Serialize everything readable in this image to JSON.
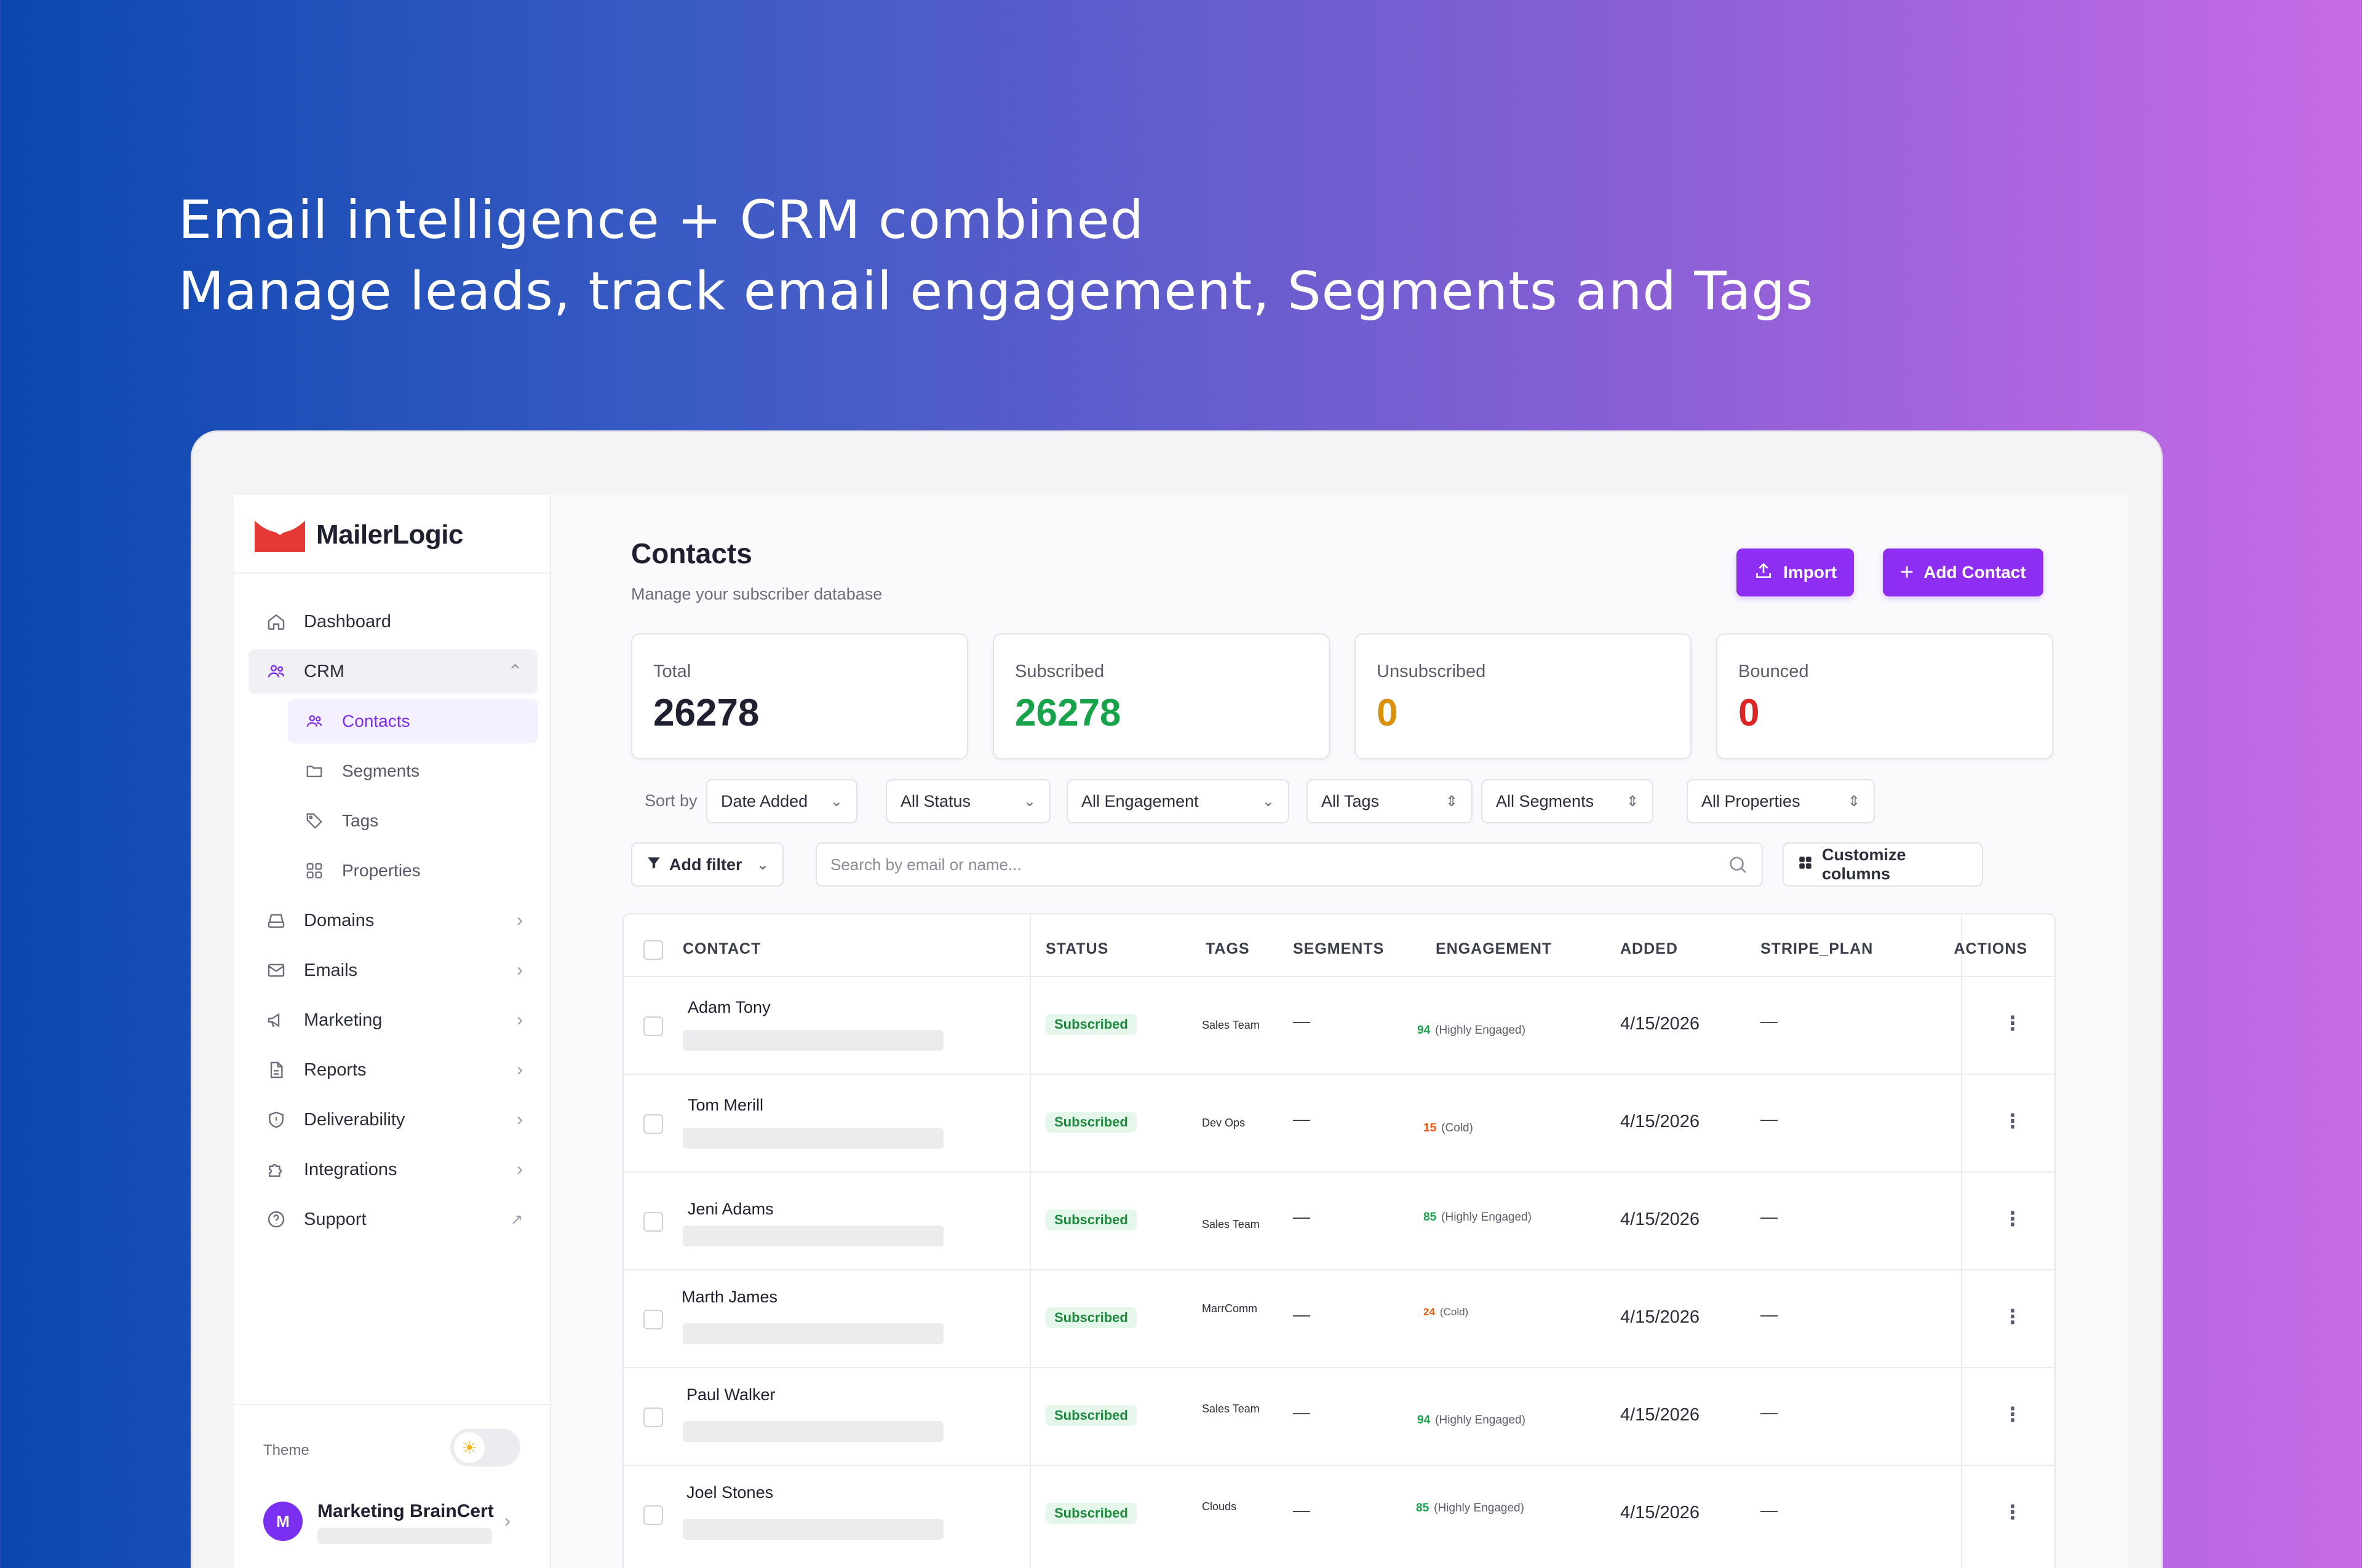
{
  "headline": {
    "line1": "Email intelligence + CRM combined",
    "line2": "Manage leads, track email engagement, Segments and Tags"
  },
  "brand": {
    "name": "MailerLogic",
    "accent": "#8d2ef2",
    "logo_color": "#e53935"
  },
  "sidebar": {
    "items": [
      {
        "label": "Dashboard",
        "icon": "home-icon"
      },
      {
        "label": "CRM",
        "icon": "users-icon"
      },
      {
        "label": "Domains",
        "icon": "server-icon"
      },
      {
        "label": "Emails",
        "icon": "mail-icon"
      },
      {
        "label": "Marketing",
        "icon": "megaphone-icon"
      },
      {
        "label": "Reports",
        "icon": "file-icon"
      },
      {
        "label": "Deliverability",
        "icon": "shield-icon"
      },
      {
        "label": "Integrations",
        "icon": "puzzle-icon"
      },
      {
        "label": "Support",
        "icon": "help-icon"
      }
    ],
    "crm_sub": [
      {
        "label": "Contacts",
        "icon": "users-icon"
      },
      {
        "label": "Segments",
        "icon": "folder-icon"
      },
      {
        "label": "Tags",
        "icon": "tag-icon"
      },
      {
        "label": "Properties",
        "icon": "grid-icon"
      }
    ],
    "theme_label": "Theme",
    "user_initial": "M",
    "user_name": "Marketing BrainCert"
  },
  "page": {
    "title": "Contacts",
    "subtitle": "Manage your subscriber database",
    "import_label": "Import",
    "add_label": "Add Contact"
  },
  "stats": [
    {
      "label": "Total",
      "value": "26278",
      "color": "#1e2030"
    },
    {
      "label": "Subscribed",
      "value": "26278",
      "color": "#16a34a"
    },
    {
      "label": "Unsubscribed",
      "value": "0",
      "color": "#d9900b"
    },
    {
      "label": "Bounced",
      "value": "0",
      "color": "#dc2626"
    }
  ],
  "filters": {
    "sort_by_label": "Sort by",
    "sort_by": "Date Added",
    "status": "All Status",
    "engagement": "All Engagement",
    "tags": "All Tags",
    "segments": "All Segments",
    "properties": "All Properties",
    "add_filter": "Add filter",
    "search_placeholder": "Search by email or name...",
    "customize": "Customize columns"
  },
  "table": {
    "headers": [
      "CONTACT",
      "STATUS",
      "TAGS",
      "SEGMENTS",
      "ENGAGEMENT",
      "ADDED",
      "STRIPE_PLAN",
      "ACTIONS"
    ],
    "rows": [
      {
        "name": "Adam Tony",
        "status": "Subscribed",
        "tag": "Sales Team",
        "segment": "—",
        "score": "94",
        "level": "(Highly Engaged)",
        "score_color": "#16a34a",
        "added": "4/15/2026",
        "plan": "—"
      },
      {
        "name": "Tom Merill",
        "status": "Subscribed",
        "tag": "Dev Ops",
        "segment": "—",
        "score": "15",
        "level": "(Cold)",
        "score_color": "#ea580c",
        "added": "4/15/2026",
        "plan": "—"
      },
      {
        "name": "Jeni Adams",
        "status": "Subscribed",
        "tag": "Sales Team",
        "segment": "—",
        "score": "85",
        "level": "(Highly Engaged)",
        "score_color": "#16a34a",
        "added": "4/15/2026",
        "plan": "—"
      },
      {
        "name": "Marth James",
        "status": "Subscribed",
        "tag": "MarrComm",
        "segment": "—",
        "score": "24",
        "level": "(Cold)",
        "score_color": "#ea580c",
        "added": "4/15/2026",
        "plan": "—"
      },
      {
        "name": "Paul Walker",
        "status": "Subscribed",
        "tag": "Sales Team",
        "segment": "—",
        "score": "94",
        "level": "(Highly Engaged)",
        "score_color": "#16a34a",
        "added": "4/15/2026",
        "plan": "—"
      },
      {
        "name": "Joel Stones",
        "status": "Subscribed",
        "tag": "Clouds",
        "segment": "—",
        "score": "85",
        "level": "(Highly Engaged)",
        "score_color": "#16a34a",
        "added": "4/15/2026",
        "plan": "—"
      }
    ]
  }
}
